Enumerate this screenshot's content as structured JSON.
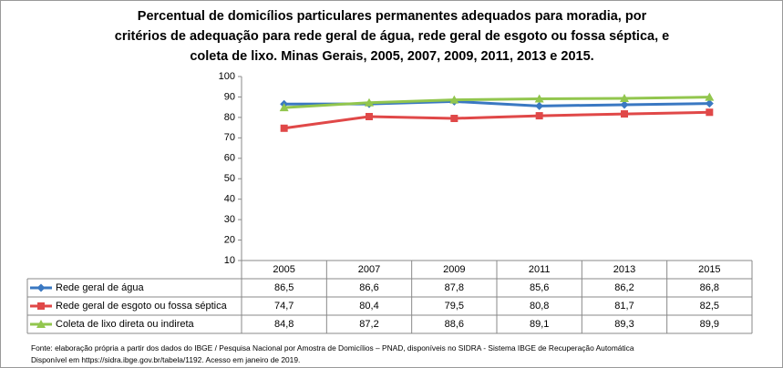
{
  "chart_data": {
    "type": "line",
    "title": [
      "Percentual de domicílios particulares permanentes adequados para moradia, por",
      "critérios de adequação para rede geral de água, rede geral de esgoto ou fossa séptica, e",
      "coleta de lixo. Minas Gerais, 2005, 2007, 2009, 2011, 2013 e 2015."
    ],
    "categories": [
      "2005",
      "2007",
      "2009",
      "2011",
      "2013",
      "2015"
    ],
    "series": [
      {
        "name": "Rede geral de água",
        "color": "#3a78c2",
        "marker": "diamond",
        "values": [
          86.5,
          86.6,
          87.8,
          85.6,
          86.2,
          86.8
        ],
        "value_labels": [
          "86,5",
          "86,6",
          "87,8",
          "85,6",
          "86,2",
          "86,8"
        ]
      },
      {
        "name": "Rede geral de esgoto ou fossa séptica",
        "color": "#e04848",
        "marker": "square",
        "values": [
          74.7,
          80.4,
          79.5,
          80.8,
          81.7,
          82.5
        ],
        "value_labels": [
          "74,7",
          "80,4",
          "79,5",
          "80,8",
          "81,7",
          "82,5"
        ]
      },
      {
        "name": "Coleta de lixo direta ou indireta",
        "color": "#92c64e",
        "marker": "triangle",
        "values": [
          84.8,
          87.2,
          88.6,
          89.1,
          89.3,
          89.9
        ],
        "value_labels": [
          "84,8",
          "87,2",
          "88,6",
          "89,1",
          "89,3",
          "89,9"
        ]
      }
    ],
    "ylim": [
      10,
      100
    ],
    "yticks": [
      10,
      20,
      30,
      40,
      50,
      60,
      70,
      80,
      90,
      100
    ],
    "grid": false,
    "source": [
      "Fonte: elaboração própria  a partir dos dados do IBGE / Pesquisa Nacional por Amostra de Domicílios – PNAD, disponíveis no SIDRA - Sistema IBGE de Recuperação Automática",
      "Disponível em https://sidra.ibge.gov.br/tabela/1192. Acesso em janeiro de 2019."
    ]
  }
}
